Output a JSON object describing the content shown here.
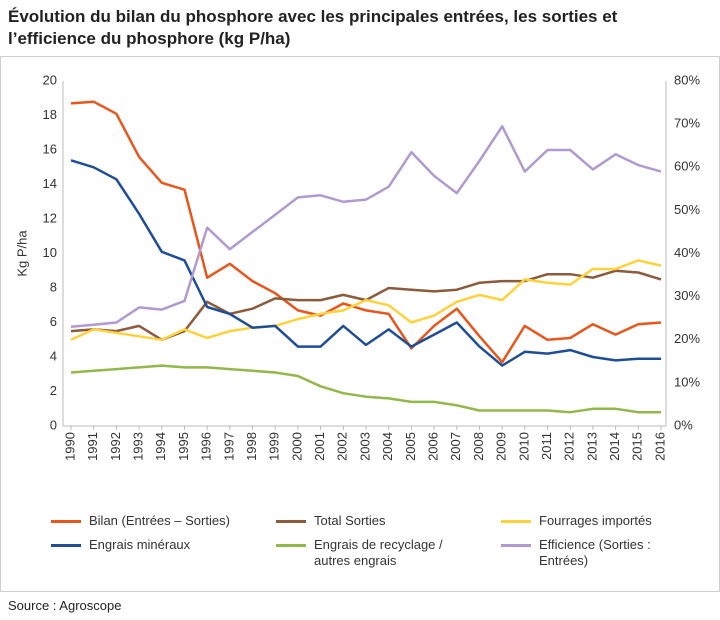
{
  "chart_data": {
    "type": "line",
    "title": "Évolution du bilan du phosphore avec les principales entrées, les sorties et l’efficience du phosphore (kg P/ha)",
    "y_label": "Kg P/ha",
    "source": "Source : Agroscope",
    "categories": [
      "1990",
      "1991",
      "1992",
      "1993",
      "1994",
      "1995",
      "1996",
      "1997",
      "1998",
      "1999",
      "2000",
      "2001",
      "2002",
      "2003",
      "2004",
      "2005",
      "2006",
      "2007",
      "2008",
      "2009",
      "2010",
      "2011",
      "2012",
      "2013",
      "2014",
      "2015",
      "2016"
    ],
    "ylim": [
      0,
      20
    ],
    "yticks": [
      0,
      2,
      4,
      6,
      8,
      10,
      12,
      14,
      16,
      18,
      20
    ],
    "y2lim": [
      0,
      80
    ],
    "y2ticks": [
      {
        "value": 0,
        "label": "0%"
      },
      {
        "value": 10,
        "label": "10%"
      },
      {
        "value": 20,
        "label": "20%"
      },
      {
        "value": 30,
        "label": "30%"
      },
      {
        "value": 40,
        "label": "40%"
      },
      {
        "value": 50,
        "label": "50%"
      },
      {
        "value": 60,
        "label": "60%"
      },
      {
        "value": 70,
        "label": "70%"
      },
      {
        "value": 80,
        "label": "80%"
      }
    ],
    "grid": false,
    "series": [
      {
        "name": "Bilan (Entrées – Sorties)",
        "color": "#e8561c",
        "values": [
          18.7,
          18.8,
          18.1,
          15.6,
          14.1,
          13.7,
          8.6,
          9.4,
          8.4,
          7.7,
          6.7,
          6.4,
          7.1,
          6.7,
          6.5,
          4.5,
          5.8,
          6.8,
          5.2,
          3.7,
          5.8,
          5.0,
          5.1,
          5.9,
          5.3,
          5.9,
          6.0
        ]
      },
      {
        "name": "Total Sorties",
        "color": "#8c5a3c",
        "values": [
          5.5,
          5.6,
          5.5,
          5.8,
          5.0,
          5.5,
          7.2,
          6.5,
          6.8,
          7.4,
          7.3,
          7.3,
          7.6,
          7.3,
          8.0,
          7.9,
          7.8,
          7.9,
          8.3,
          8.4,
          8.4,
          8.8,
          8.8,
          8.6,
          9.0,
          8.9,
          8.5
        ]
      },
      {
        "name": "Fourrages importés",
        "color": "#ffd23c",
        "values": [
          5.0,
          5.6,
          5.4,
          5.2,
          5.0,
          5.6,
          5.1,
          5.5,
          5.7,
          5.8,
          6.2,
          6.5,
          6.7,
          7.3,
          7.0,
          6.0,
          6.4,
          7.2,
          7.6,
          7.3,
          8.5,
          8.3,
          8.2,
          9.1,
          9.1,
          9.6,
          9.3
        ]
      },
      {
        "name": "Engrais minéraux",
        "color": "#1f4e96",
        "values": [
          15.4,
          15.0,
          14.3,
          12.3,
          10.1,
          9.6,
          6.9,
          6.5,
          5.7,
          5.8,
          4.6,
          4.6,
          5.8,
          4.7,
          5.6,
          4.6,
          5.3,
          6.0,
          4.6,
          3.5,
          4.3,
          4.2,
          4.4,
          4.0,
          3.8,
          3.9,
          3.9
        ]
      },
      {
        "name": "Engrais de recyclage / autres engrais",
        "color": "#92b84a",
        "values": [
          3.1,
          3.2,
          3.3,
          3.4,
          3.5,
          3.4,
          3.4,
          3.3,
          3.2,
          3.1,
          2.9,
          2.3,
          1.9,
          1.7,
          1.6,
          1.4,
          1.4,
          1.2,
          0.9,
          0.9,
          0.9,
          0.9,
          0.8,
          1.0,
          1.0,
          0.8,
          0.8
        ]
      },
      {
        "name": "Efficience (Sorties : Entrées)",
        "color": "#b09ad0",
        "axis": "y2",
        "values": [
          23,
          23.5,
          24,
          27.5,
          27,
          29,
          46,
          41,
          45,
          49,
          53,
          53.5,
          52,
          52.5,
          55.5,
          63.5,
          58,
          54,
          61.5,
          69.5,
          59,
          64,
          64,
          59.5,
          63,
          60.5,
          59
        ]
      }
    ]
  }
}
